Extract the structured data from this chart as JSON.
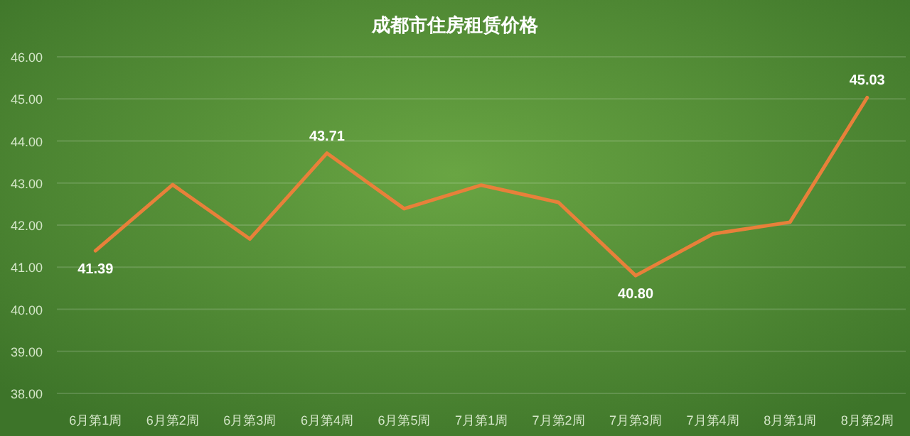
{
  "chart_data": {
    "type": "line",
    "title": "成都市住房租赁价格",
    "categories": [
      "6月第1周",
      "6月第2周",
      "6月第3周",
      "6月第4周",
      "6月第5周",
      "7月第1周",
      "7月第2周",
      "7月第3周",
      "7月第4周",
      "8月第1周",
      "8月第2周"
    ],
    "series": [
      {
        "color": "#e8803a",
        "values": [
          41.39,
          42.96,
          41.67,
          43.71,
          42.39,
          42.95,
          42.54,
          40.8,
          41.79,
          42.07,
          45.03
        ],
        "value_labels": [
          "41.39",
          null,
          null,
          "43.71",
          null,
          null,
          null,
          "40.80",
          null,
          null,
          "45.03"
        ]
      }
    ],
    "ylim": [
      38,
      46
    ],
    "yticks": [
      {
        "value": 38,
        "label": "38.00"
      },
      {
        "value": 39,
        "label": "39.00"
      },
      {
        "value": 40,
        "label": "40.00"
      },
      {
        "value": 41,
        "label": "41.00"
      },
      {
        "value": 42,
        "label": "42.00"
      },
      {
        "value": 43,
        "label": "43.00"
      },
      {
        "value": 44,
        "label": "44.00"
      },
      {
        "value": 45,
        "label": "45.00"
      },
      {
        "value": 46,
        "label": "46.00"
      }
    ],
    "grid": "y",
    "marker": "none",
    "line_style": "solid"
  }
}
